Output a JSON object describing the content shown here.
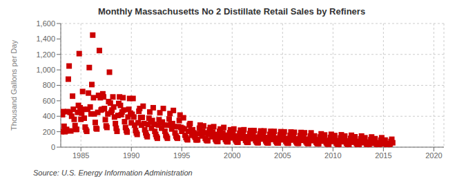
{
  "chart_data": {
    "type": "scatter",
    "title": "Monthly Massachusetts No 2 Distillate Retail Sales by Refiners",
    "y_label": "Thousand Gallons per Day",
    "annotations": [
      "Source: U.S. Energy Information Administration"
    ],
    "color": "#cc0000",
    "marker": "square",
    "grid": true,
    "xlim": [
      1983.0,
      2021.0
    ],
    "ylim": [
      0,
      1600
    ],
    "xticks": [
      1985,
      1990,
      1995,
      2000,
      2005,
      2010,
      2015,
      2020
    ],
    "yticks": [
      0,
      200,
      400,
      600,
      800,
      {
        "value": 1000,
        "label": "1,000"
      },
      {
        "value": 1200,
        "label": "1,200"
      },
      {
        "value": 1400,
        "label": "1,400"
      },
      {
        "value": 1600,
        "label": "1,600"
      }
    ],
    "x": [
      1983.0,
      1983.08,
      1983.17,
      1983.25,
      1983.33,
      1983.42,
      1983.5,
      1983.58,
      1983.67,
      1983.75,
      1983.83,
      1983.92,
      1984.0,
      1984.08,
      1984.17,
      1984.25,
      1984.33,
      1984.42,
      1984.5,
      1984.58,
      1984.67,
      1984.75,
      1984.83,
      1984.92,
      1985.0,
      1985.08,
      1985.17,
      1985.25,
      1985.33,
      1985.42,
      1985.5,
      1985.58,
      1985.67,
      1985.75,
      1985.83,
      1985.92,
      1986.0,
      1986.08,
      1986.17,
      1986.25,
      1986.33,
      1986.42,
      1986.5,
      1986.58,
      1986.67,
      1986.75,
      1986.83,
      1986.92,
      1987.0,
      1987.08,
      1987.17,
      1987.25,
      1987.33,
      1987.42,
      1987.5,
      1987.58,
      1987.67,
      1987.75,
      1987.83,
      1987.92,
      1988.0,
      1988.08,
      1988.17,
      1988.25,
      1988.33,
      1988.42,
      1988.5,
      1988.58,
      1988.67,
      1988.75,
      1988.83,
      1988.92,
      1989.0,
      1989.08,
      1989.17,
      1989.25,
      1989.33,
      1989.42,
      1989.5,
      1989.58,
      1989.67,
      1989.75,
      1989.83,
      1989.92,
      1990.0,
      1990.08,
      1990.17,
      1990.25,
      1990.33,
      1990.42,
      1990.5,
      1990.58,
      1990.67,
      1990.75,
      1990.83,
      1990.92,
      1991.0,
      1991.08,
      1991.17,
      1991.25,
      1991.33,
      1991.42,
      1991.5,
      1991.58,
      1991.67,
      1991.75,
      1991.83,
      1991.92,
      1992.0,
      1992.08,
      1992.17,
      1992.25,
      1992.33,
      1992.42,
      1992.5,
      1992.58,
      1992.67,
      1992.75,
      1992.83,
      1992.92,
      1993.0,
      1993.08,
      1993.17,
      1993.25,
      1993.33,
      1993.42,
      1993.5,
      1993.58,
      1993.67,
      1993.75,
      1993.83,
      1993.92,
      1994.0,
      1994.08,
      1994.17,
      1994.25,
      1994.33,
      1994.42,
      1994.5,
      1994.58,
      1994.67,
      1994.75,
      1994.83,
      1994.92,
      1995.0,
      1995.08,
      1995.17,
      1995.25,
      1995.33,
      1995.42,
      1995.5,
      1995.58,
      1995.67,
      1995.75,
      1995.83,
      1995.92,
      1996.0,
      1996.08,
      1996.17,
      1996.25,
      1996.33,
      1996.42,
      1996.5,
      1996.58,
      1996.67,
      1996.75,
      1996.83,
      1996.92,
      1997.0,
      1997.08,
      1997.17,
      1997.25,
      1997.33,
      1997.42,
      1997.5,
      1997.58,
      1997.67,
      1997.75,
      1997.83,
      1997.92,
      1998.0,
      1998.08,
      1998.17,
      1998.25,
      1998.33,
      1998.42,
      1998.5,
      1998.58,
      1998.67,
      1998.75,
      1998.83,
      1998.92,
      1999.0,
      1999.08,
      1999.17,
      1999.25,
      1999.33,
      1999.42,
      1999.5,
      1999.58,
      1999.67,
      1999.75,
      1999.83,
      1999.92,
      2000.0,
      2000.08,
      2000.17,
      2000.25,
      2000.33,
      2000.42,
      2000.5,
      2000.58,
      2000.67,
      2000.75,
      2000.83,
      2000.92,
      2001.0,
      2001.08,
      2001.17,
      2001.25,
      2001.33,
      2001.42,
      2001.5,
      2001.58,
      2001.67,
      2001.75,
      2001.83,
      2001.92,
      2002.0,
      2002.08,
      2002.17,
      2002.25,
      2002.33,
      2002.42,
      2002.5,
      2002.58,
      2002.67,
      2002.75,
      2002.83,
      2002.92,
      2003.0,
      2003.08,
      2003.17,
      2003.25,
      2003.33,
      2003.42,
      2003.5,
      2003.58,
      2003.67,
      2003.75,
      2003.83,
      2003.92,
      2004.0,
      2004.08,
      2004.17,
      2004.25,
      2004.33,
      2004.42,
      2004.5,
      2004.58,
      2004.67,
      2004.75,
      2004.83,
      2004.92,
      2005.0,
      2005.08,
      2005.17,
      2005.25,
      2005.33,
      2005.42,
      2005.5,
      2005.58,
      2005.67,
      2005.75,
      2005.83,
      2005.92,
      2006.0,
      2006.08,
      2006.17,
      2006.25,
      2006.33,
      2006.42,
      2006.5,
      2006.58,
      2006.67,
      2006.75,
      2006.83,
      2006.92,
      2007.0,
      2007.08,
      2007.17,
      2007.25,
      2007.33,
      2007.42,
      2007.5,
      2007.58,
      2007.67,
      2007.75,
      2007.83,
      2007.92,
      2008.0,
      2008.08,
      2008.17,
      2008.25,
      2008.33,
      2008.42,
      2008.5,
      2008.58,
      2008.67,
      2008.75,
      2008.83,
      2008.92,
      2009.0,
      2009.08,
      2009.17,
      2009.25,
      2009.33,
      2009.42,
      2009.5,
      2009.58,
      2009.67,
      2009.75,
      2009.83,
      2009.92,
      2010.0,
      2010.08,
      2010.17,
      2010.25,
      2010.33,
      2010.42,
      2010.5,
      2010.58,
      2010.67,
      2010.75,
      2010.83,
      2010.92,
      2011.0,
      2011.08,
      2011.17,
      2011.25,
      2011.33,
      2011.42,
      2011.5,
      2011.58,
      2011.67,
      2011.75,
      2011.83,
      2011.92,
      2012.0,
      2012.08,
      2012.17,
      2012.25,
      2012.33,
      2012.42,
      2012.5,
      2012.58,
      2012.67,
      2012.75,
      2012.83,
      2012.92,
      2013.0,
      2013.08,
      2013.17,
      2013.25,
      2013.33,
      2013.42,
      2013.5,
      2013.58,
      2013.67,
      2013.75,
      2013.83,
      2013.92,
      2014.0,
      2014.08,
      2014.17,
      2014.25,
      2014.33,
      2014.42,
      2014.5,
      2014.58,
      2014.67,
      2014.75,
      2014.83,
      2014.92,
      2015.0,
      2015.08,
      2015.17,
      2015.25,
      2015.33,
      2015.42,
      2015.5,
      2015.58,
      2015.67,
      2015.75,
      2015.83,
      2015.92
    ],
    "values": [
      430,
      200,
      420,
      460,
      270,
      200,
      210,
      230,
      460,
      880,
      1050,
      450,
      210,
      400,
      660,
      490,
      360,
      280,
      230,
      230,
      450,
      540,
      1210,
      510,
      360,
      440,
      720,
      490,
      375,
      260,
      225,
      205,
      490,
      700,
      1030,
      520,
      430,
      810,
      1450,
      640,
      430,
      320,
      245,
      235,
      450,
      670,
      1250,
      640,
      480,
      490,
      690,
      650,
      500,
      355,
      275,
      255,
      430,
      590,
      970,
      570,
      450,
      480,
      650,
      520,
      390,
      305,
      245,
      205,
      410,
      565,
      650,
      540,
      420,
      455,
      640,
      480,
      330,
      255,
      215,
      195,
      390,
      490,
      630,
      440,
      315,
      425,
      630,
      390,
      285,
      215,
      185,
      165,
      315,
      465,
      500,
      385,
      285,
      385,
      530,
      305,
      225,
      185,
      155,
      135,
      295,
      375,
      455,
      325,
      245,
      345,
      510,
      295,
      205,
      165,
      135,
      115,
      285,
      355,
      445,
      315,
      245,
      325,
      500,
      285,
      205,
      155,
      135,
      115,
      285,
      365,
      435,
      295,
      235,
      305,
      475,
      265,
      185,
      145,
      125,
      115,
      265,
      345,
      415,
      255,
      205,
      245,
      380,
      235,
      155,
      125,
      105,
      95,
      205,
      285,
      305,
      215,
      155,
      225,
      185,
      145,
      125,
      95,
      95,
      95,
      175,
      245,
      285,
      185,
      145,
      205,
      275,
      185,
      115,
      95,
      85,
      85,
      165,
      225,
      255,
      175,
      135,
      195,
      265,
      165,
      105,
      85,
      75,
      75,
      135,
      205,
      235,
      165,
      125,
      185,
      255,
      155,
      100,
      80,
      70,
      70,
      125,
      185,
      225,
      155,
      120,
      175,
      235,
      145,
      95,
      75,
      65,
      65,
      120,
      180,
      220,
      150,
      115,
      165,
      225,
      135,
      90,
      70,
      62,
      62,
      115,
      175,
      215,
      145,
      110,
      160,
      215,
      130,
      85,
      67,
      58,
      58,
      110,
      170,
      210,
      140,
      105,
      155,
      210,
      125,
      82,
      63,
      55,
      55,
      105,
      165,
      205,
      135,
      100,
      148,
      204,
      118,
      78,
      60,
      54,
      54,
      100,
      158,
      200,
      130,
      95,
      143,
      198,
      113,
      76,
      58,
      52,
      52,
      97,
      153,
      196,
      126,
      92,
      138,
      192,
      108,
      72,
      56,
      50,
      50,
      94,
      148,
      190,
      122,
      88,
      134,
      186,
      104,
      70,
      54,
      48,
      48,
      90,
      144,
      185,
      118,
      84,
      128,
      145,
      97,
      64,
      50,
      44,
      44,
      84,
      132,
      172,
      108,
      78,
      120,
      158,
      88,
      58,
      44,
      40,
      40,
      78,
      126,
      166,
      100,
      74,
      114,
      150,
      84,
      54,
      42,
      38,
      38,
      74,
      120,
      160,
      96,
      70,
      110,
      144,
      80,
      52,
      40,
      36,
      36,
      70,
      114,
      154,
      90,
      64,
      102,
      134,
      74,
      48,
      36,
      32,
      32,
      64,
      107,
      144,
      84,
      57,
      92,
      122,
      66,
      42,
      32,
      28,
      28,
      57,
      97,
      132,
      77,
      50,
      82,
      110,
      57,
      37,
      28,
      24,
      24,
      50,
      90,
      122,
      70,
      42,
      70,
      92,
      48,
      30,
      22,
      18,
      18,
      42,
      74,
      102,
      57
    ]
  }
}
